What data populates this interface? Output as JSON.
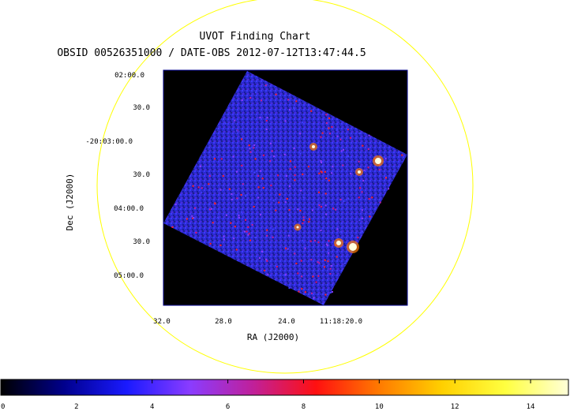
{
  "chart_data": {
    "type": "heatmap",
    "title": "UVOT Finding Chart",
    "subtitle": "OBSID 00526351000 / DATE-OBS 2012-07-12T13:47:44.5",
    "xlabel": "RA (J2000)",
    "ylabel": "Dec (J2000)",
    "x_ticks": [
      "32.0",
      "28.0",
      "24.0",
      "11:18:20.0"
    ],
    "y_ticks": [
      "02:00.0",
      "30.0",
      "-20:03:00.0",
      "30.0",
      "04:00.0",
      "30.0",
      "05:00.0"
    ],
    "colorbar": {
      "ticks": [
        0,
        2,
        4,
        6,
        8,
        10,
        12,
        14
      ],
      "range": [
        0,
        15
      ],
      "colormap": [
        "#000000",
        "#00008c",
        "#1a1aff",
        "#8a3cff",
        "#c0209a",
        "#ff1010",
        "#ff7a00",
        "#ffd000",
        "#ffff40",
        "#ffffd8"
      ]
    },
    "sources": [
      {
        "ra_offset_label": "near 11:18:20.0",
        "brightness": 15,
        "note": ""
      },
      {
        "ra_offset_label": "near 11:18:20.0",
        "brightness": 15,
        "note": ""
      }
    ],
    "colors": {
      "circle": "#ffff00",
      "frame": "#00008c",
      "background_field": "#000000",
      "noise_base": "#2a2ad8"
    }
  }
}
